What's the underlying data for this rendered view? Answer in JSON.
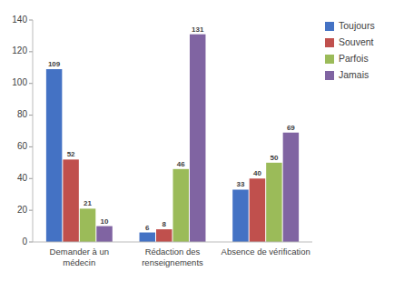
{
  "chart_data": {
    "type": "bar",
    "categories": [
      "Demander à un\nmédecin",
      "Rédaction des\nrenseignements",
      "Absence de vérification"
    ],
    "series": [
      {
        "name": "Toujours",
        "color": "#4472C4",
        "values": [
          109,
          6,
          33
        ]
      },
      {
        "name": "Souvent",
        "color": "#C0504D",
        "values": [
          52,
          8,
          40
        ]
      },
      {
        "name": "Parfois",
        "color": "#9BBB59",
        "values": [
          21,
          46,
          50
        ]
      },
      {
        "name": "Jamais",
        "color": "#8064A2",
        "values": [
          10,
          131,
          69
        ]
      }
    ],
    "ylim": [
      0,
      140
    ],
    "yticks": [
      0,
      20,
      40,
      60,
      80,
      100,
      120,
      140
    ],
    "grid": false,
    "legend": "right",
    "data_labels": true
  }
}
